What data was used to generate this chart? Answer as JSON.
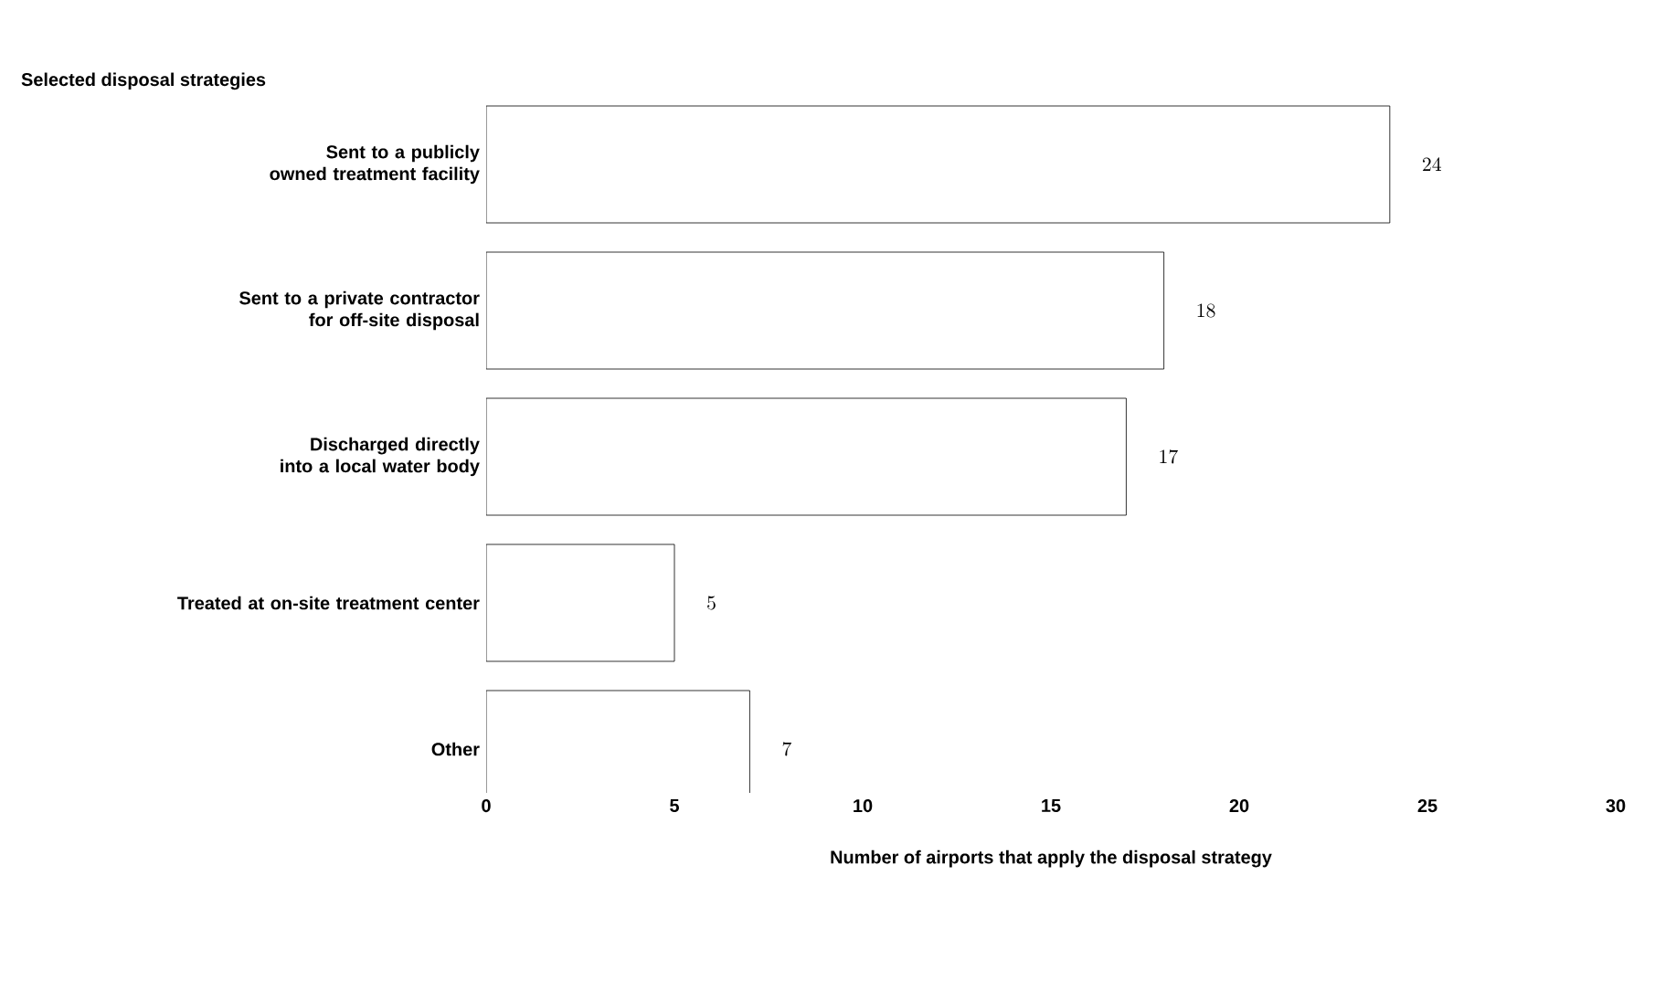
{
  "chart_data": {
    "type": "bar",
    "orientation": "horizontal",
    "ylabel": "Selected disposal strategies",
    "xlabel": "Number of airports that apply the disposal strategy",
    "categories": [
      "Sent to a publicly owned treatment facility",
      "Sent to a private contractor for off-site disposal",
      "Discharged directly into a local water body",
      "Treated at on-site treatment center",
      "Other"
    ],
    "values": [
      24,
      18,
      17,
      5,
      7
    ],
    "color": "#ffffff",
    "data_labels": true,
    "xlim": [
      0,
      30
    ],
    "xticks": [
      0,
      5,
      10,
      15,
      20,
      25,
      30
    ]
  }
}
